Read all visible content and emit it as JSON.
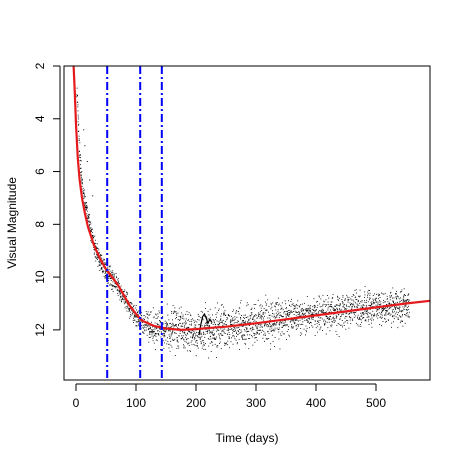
{
  "chart_data": {
    "type": "scatter",
    "title": "",
    "xlabel": "Time (days)",
    "ylabel": "Visual Magnitude",
    "xlim": [
      -20,
      590
    ],
    "ylim": [
      13.9,
      2.0
    ],
    "y_axis_inverted": true,
    "x_ticks": [
      0,
      100,
      200,
      300,
      400,
      500
    ],
    "y_ticks": [
      2,
      4,
      6,
      8,
      10,
      12
    ],
    "grid": false,
    "legend": "none",
    "series": [
      {
        "kind": "scatter",
        "color": "#000000",
        "marker": "dot",
        "description_points": [
          [
            0,
            2.5
          ],
          [
            3,
            4.0
          ],
          [
            5,
            5.2
          ],
          [
            8,
            6.0
          ],
          [
            10,
            6.6
          ],
          [
            15,
            7.3
          ],
          [
            20,
            7.8
          ],
          [
            25,
            8.3
          ],
          [
            30,
            8.8
          ],
          [
            35,
            9.1
          ],
          [
            40,
            9.4
          ],
          [
            45,
            9.6
          ],
          [
            50,
            9.8
          ],
          [
            55,
            9.95
          ],
          [
            60,
            10.1
          ],
          [
            70,
            10.4
          ],
          [
            80,
            10.8
          ],
          [
            90,
            11.2
          ],
          [
            100,
            11.5
          ],
          [
            110,
            11.7
          ],
          [
            120,
            11.85
          ],
          [
            140,
            11.95
          ],
          [
            160,
            12.0
          ],
          [
            180,
            12.05
          ],
          [
            200,
            12.0
          ],
          [
            220,
            11.95
          ],
          [
            250,
            11.9
          ],
          [
            275,
            11.85
          ],
          [
            300,
            11.75
          ],
          [
            350,
            11.55
          ],
          [
            400,
            11.4
          ],
          [
            450,
            11.25
          ],
          [
            500,
            11.15
          ],
          [
            550,
            11.1
          ]
        ]
      },
      {
        "kind": "line",
        "color": "#e41a1c",
        "fit_points": [
          [
            -4,
            2.0
          ],
          [
            -2,
            3.0
          ],
          [
            0,
            4.2
          ],
          [
            3,
            5.5
          ],
          [
            6,
            6.3
          ],
          [
            10,
            7.0
          ],
          [
            15,
            7.6
          ],
          [
            20,
            8.1
          ],
          [
            30,
            8.8
          ],
          [
            40,
            9.3
          ],
          [
            50,
            9.7
          ],
          [
            60,
            10.0
          ],
          [
            70,
            10.3
          ],
          [
            80,
            10.7
          ],
          [
            90,
            11.1
          ],
          [
            100,
            11.4
          ],
          [
            110,
            11.65
          ],
          [
            130,
            11.85
          ],
          [
            150,
            11.95
          ],
          [
            175,
            12.0
          ],
          [
            200,
            11.97
          ],
          [
            225,
            11.92
          ],
          [
            250,
            11.88
          ],
          [
            300,
            11.75
          ],
          [
            350,
            11.6
          ],
          [
            400,
            11.45
          ],
          [
            450,
            11.3
          ],
          [
            500,
            11.15
          ],
          [
            550,
            11.0
          ],
          [
            590,
            10.9
          ]
        ]
      }
    ],
    "vertical_lines": {
      "x": [
        52,
        107,
        143
      ],
      "color": "#0000ff",
      "style": "dash-dot"
    }
  }
}
